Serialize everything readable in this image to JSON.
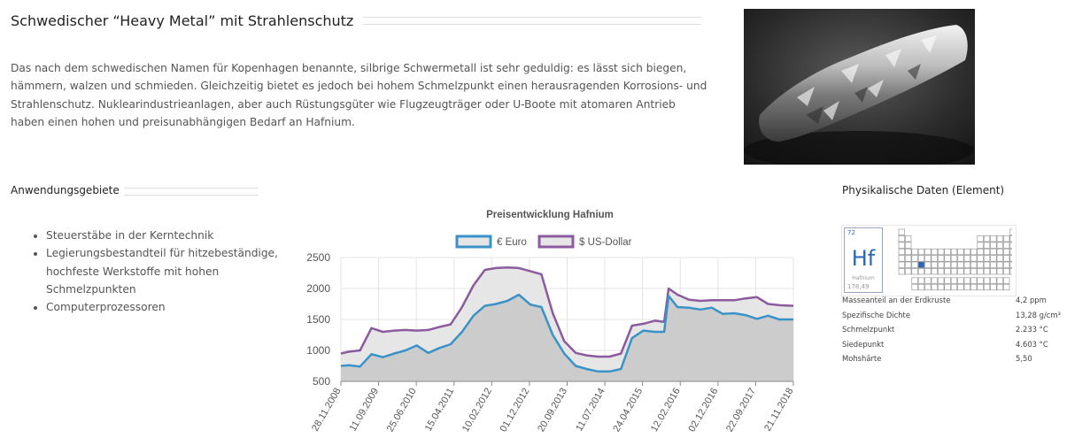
{
  "main_title": "Schwedischer “Heavy Metal” mit Strahlenschutz",
  "intro_text": "Das nach dem schwedischen Namen für Kopenhagen benannte, silbrige Schwermetall ist sehr geduldig: es lässt sich biegen, hämmern, walzen und schmieden. Gleichzeitig bietet es jedoch bei hohem Schmelzpunkt einen herausragenden Korrosions- und Strahlenschutz. Nuklearindustrieanlagen, aber auch Rüstungsgüter wie Flugzeugträger oder U-Boote mit atomaren Antrieb haben einen hohen und preisunabhängigen Bedarf an Hafnium.",
  "uses": {
    "title": "Anwendungsgebiete",
    "items": [
      "Steuerstäbe in der Kerntechnik",
      "Legierungsbestandteil für hitzebeständige, hochfeste Werkstoffe mit hohen Schmelzpunkten",
      "Computerprozessoren"
    ]
  },
  "physical": {
    "title": "Physikalische Daten (Element)",
    "element": {
      "number": "72",
      "symbol": "Hf",
      "name": "Hafnium",
      "mass": "178,49"
    },
    "rows": [
      {
        "label": "Masseanteil an der Erdkruste",
        "value": "4,2 ppm"
      },
      {
        "label": "Spezifische Dichte",
        "value": "13,28 g/cm³"
      },
      {
        "label": "Schmelzpunkt",
        "value": "2.233 °C"
      },
      {
        "label": "Siedepunkt",
        "value": "4.603 °C"
      },
      {
        "label": "Mohshärte",
        "value": "5,50"
      }
    ]
  },
  "chart_data": {
    "type": "area",
    "title": "Preisentwicklung Hafnium",
    "legend_position": "top",
    "grid": true,
    "ylim": [
      500,
      2500
    ],
    "yticks": [
      500,
      1000,
      1500,
      2000,
      2500
    ],
    "x_tick_labels": [
      "28.11.2008",
      "11.09.2009",
      "25.06.2010",
      "15.04.2011",
      "10.02.2012",
      "01.12.2012",
      "20.09.2013",
      "11.07.2014",
      "24.04.2015",
      "12.02.2016",
      "02.12.2016",
      "22.09.2017",
      "21.11.2018"
    ],
    "x_start": "2008-11-28",
    "x_end": "2018-11-21",
    "series": [
      {
        "name": "€ Euro",
        "color": "#3a93c8",
        "dates": [
          "2008-11-28",
          "2009-02-01",
          "2009-05-01",
          "2009-08-01",
          "2009-11-01",
          "2010-02-01",
          "2010-05-01",
          "2010-08-01",
          "2010-11-01",
          "2011-02-01",
          "2011-05-01",
          "2011-08-01",
          "2011-11-01",
          "2012-02-01",
          "2012-05-01",
          "2012-08-01",
          "2012-11-01",
          "2013-02-01",
          "2013-05-01",
          "2013-08-01",
          "2013-11-01",
          "2014-02-01",
          "2014-05-01",
          "2014-08-01",
          "2014-11-01",
          "2015-02-01",
          "2015-05-01",
          "2015-08-01",
          "2015-11-01",
          "2016-01-15",
          "2016-02-20",
          "2016-05-01",
          "2016-08-01",
          "2016-11-01",
          "2017-02-01",
          "2017-05-01",
          "2017-08-01",
          "2017-11-01",
          "2018-02-01",
          "2018-05-01",
          "2018-08-01",
          "2018-11-21"
        ],
        "values": [
          750,
          760,
          740,
          940,
          890,
          950,
          1000,
          1080,
          960,
          1040,
          1100,
          1300,
          1560,
          1720,
          1750,
          1800,
          1900,
          1740,
          1700,
          1250,
          950,
          750,
          700,
          660,
          660,
          700,
          1200,
          1320,
          1300,
          1300,
          1880,
          1700,
          1690,
          1660,
          1690,
          1590,
          1600,
          1570,
          1510,
          1560,
          1500,
          1500
        ]
      },
      {
        "name": "$ US-Dollar",
        "color": "#8c5a9e",
        "dates": [
          "2008-11-28",
          "2009-02-01",
          "2009-05-01",
          "2009-08-01",
          "2009-11-01",
          "2010-02-01",
          "2010-05-01",
          "2010-08-01",
          "2010-11-01",
          "2011-02-01",
          "2011-05-01",
          "2011-08-01",
          "2011-11-01",
          "2012-02-01",
          "2012-05-01",
          "2012-08-01",
          "2012-11-01",
          "2013-02-01",
          "2013-05-01",
          "2013-08-01",
          "2013-11-01",
          "2014-02-01",
          "2014-05-01",
          "2014-08-01",
          "2014-11-01",
          "2015-02-01",
          "2015-05-01",
          "2015-08-01",
          "2015-11-01",
          "2016-01-15",
          "2016-02-20",
          "2016-05-01",
          "2016-08-01",
          "2016-11-01",
          "2017-02-01",
          "2017-05-01",
          "2017-08-01",
          "2017-11-01",
          "2018-02-01",
          "2018-05-01",
          "2018-08-01",
          "2018-11-21"
        ],
        "values": [
          950,
          980,
          1000,
          1360,
          1300,
          1320,
          1330,
          1320,
          1330,
          1380,
          1420,
          1700,
          2050,
          2300,
          2330,
          2340,
          2330,
          2280,
          2230,
          1600,
          1150,
          960,
          920,
          900,
          900,
          950,
          1400,
          1430,
          1480,
          1460,
          2000,
          1900,
          1820,
          1800,
          1810,
          1810,
          1810,
          1840,
          1860,
          1750,
          1730,
          1720
        ]
      }
    ]
  }
}
